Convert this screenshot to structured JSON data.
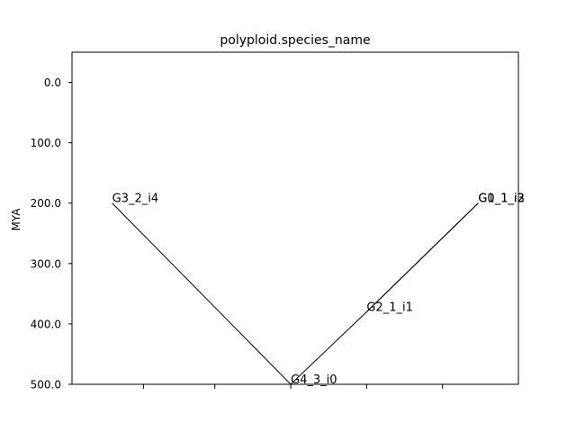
{
  "chart_data": {
    "type": "line",
    "title": "polyploid.species_name",
    "xlabel": "",
    "ylabel": "MYA",
    "ylim": [
      500,
      -50
    ],
    "y_inverted": true,
    "yticks": [
      0,
      100,
      200,
      300,
      400,
      500
    ],
    "ytick_labels": [
      "0.0",
      "100.0",
      "200.0",
      "300.0",
      "400.0",
      "500.0"
    ],
    "xlim": [
      0,
      1
    ],
    "xticks": [
      0.16,
      0.32,
      0.49,
      0.66,
      0.83
    ],
    "grid": false,
    "legend": "none",
    "edges": [
      {
        "from": "G4_3_i0",
        "to": "G3_2_i4"
      },
      {
        "from": "G4_3_i0",
        "to": "G2_1_i1"
      },
      {
        "from": "G2_1_i1",
        "to": "G1_1_i2"
      },
      {
        "from": "G2_1_i1",
        "to": "G0_1_i3"
      }
    ],
    "nodes": [
      {
        "label": "G4_3_i0",
        "x": 0.49,
        "y": 500
      },
      {
        "label": "G3_2_i4",
        "x": 0.09,
        "y": 200
      },
      {
        "label": "G2_1_i1",
        "x": 0.66,
        "y": 380
      },
      {
        "label": "G1_1_i2",
        "x": 0.91,
        "y": 200
      },
      {
        "label": "G0_1_i3",
        "x": 0.91,
        "y": 200
      }
    ]
  }
}
